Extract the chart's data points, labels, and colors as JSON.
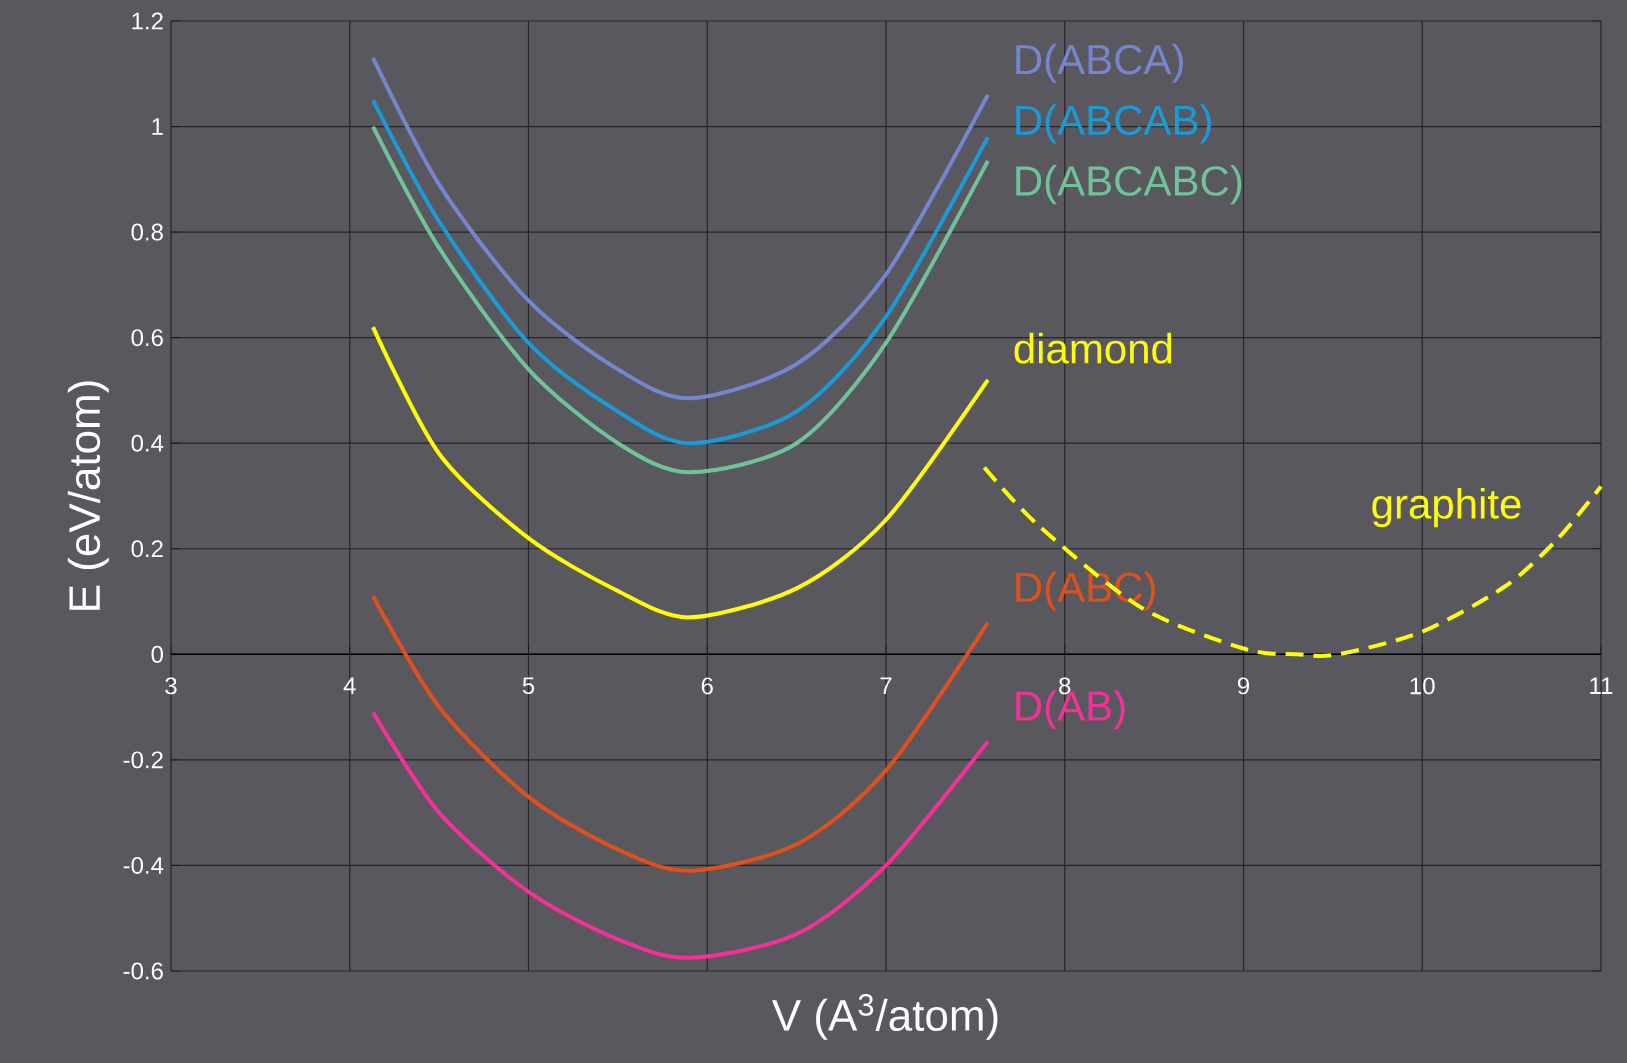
{
  "chart_data": {
    "type": "line",
    "xlabel": "V (A$^{3}$/atom)",
    "ylabel": "E (eV/atom)",
    "xlim": [
      3,
      11
    ],
    "ylim": [
      -0.6,
      1.2
    ],
    "xticks": [
      3,
      4,
      5,
      6,
      7,
      8,
      9,
      10,
      11
    ],
    "yticks": [
      -0.6,
      -0.4,
      -0.2,
      0,
      0.2,
      0.4,
      0.6,
      0.8,
      1,
      1.2
    ],
    "grid": true,
    "marker": "none",
    "series": [
      {
        "name": "D(ABCA)",
        "color": "#7585d0",
        "x": [
          4.13,
          4.5,
          5,
          5.5,
          5.9,
          6.5,
          7,
          7.57
        ],
        "values": [
          1.13,
          0.89,
          0.67,
          0.54,
          0.485,
          0.55,
          0.72,
          1.06
        ]
      },
      {
        "name": "D(ABCAB)",
        "color": "#1a9ad6",
        "x": [
          4.13,
          4.5,
          5,
          5.5,
          5.9,
          6.5,
          7,
          7.57
        ],
        "values": [
          1.05,
          0.82,
          0.59,
          0.46,
          0.4,
          0.46,
          0.64,
          0.98
        ]
      },
      {
        "name": "D(ABCABC)",
        "color": "#6fc29a",
        "x": [
          4.13,
          4.5,
          5,
          5.5,
          5.9,
          6.5,
          7,
          7.57
        ],
        "values": [
          1.0,
          0.77,
          0.54,
          0.4,
          0.345,
          0.4,
          0.59,
          0.935
        ]
      },
      {
        "name": "diamond",
        "color": "#ffff00",
        "x": [
          4.13,
          4.5,
          5,
          5.5,
          5.9,
          6.5,
          7,
          7.57
        ],
        "values": [
          0.62,
          0.38,
          0.22,
          0.12,
          0.07,
          0.125,
          0.255,
          0.52
        ]
      },
      {
        "name": "D(ABC)",
        "color": "#e0501c",
        "x": [
          4.13,
          4.5,
          5,
          5.5,
          5.9,
          6.5,
          7,
          7.57
        ],
        "values": [
          0.11,
          -0.1,
          -0.27,
          -0.37,
          -0.41,
          -0.36,
          -0.22,
          0.06
        ]
      },
      {
        "name": "D(AB)",
        "color": "#f5309a",
        "x": [
          4.13,
          4.5,
          5,
          5.5,
          5.9,
          6.5,
          7,
          7.57
        ],
        "values": [
          -0.11,
          -0.3,
          -0.45,
          -0.54,
          -0.575,
          -0.53,
          -0.4,
          -0.165
        ]
      },
      {
        "name": "graphite",
        "color": "#ffff00",
        "line_style": "dashed",
        "x": [
          7.55,
          7.85,
          8.43,
          9.01,
          9.3,
          9.53,
          10.0,
          10.46,
          10.75,
          11
        ],
        "values": [
          0.354,
          0.245,
          0.088,
          0.01,
          0.0,
          0.0,
          0.043,
          0.128,
          0.216,
          0.318
        ]
      }
    ]
  }
}
